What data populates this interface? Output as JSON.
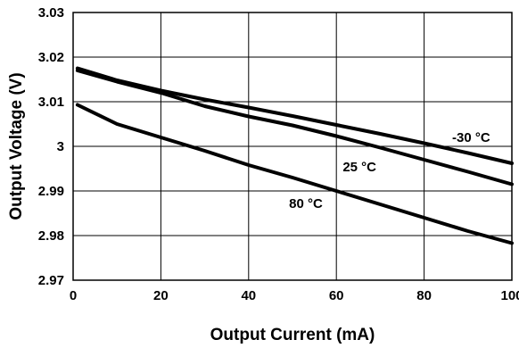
{
  "chart_data": {
    "type": "line",
    "title": "",
    "xlabel": "Output Current (mA)",
    "ylabel": "Output Voltage (V)",
    "xlim": [
      0,
      100
    ],
    "ylim": [
      2.97,
      3.03
    ],
    "x_ticks": [
      "0",
      "20",
      "40",
      "60",
      "80",
      "100"
    ],
    "y_ticks": [
      "3.03",
      "3.02",
      "3.01",
      "3",
      "2.99",
      "2.98",
      "2.97"
    ],
    "grid": true,
    "legend": "none",
    "series": [
      {
        "name": "-30 °C",
        "x": [
          1,
          10,
          20,
          30,
          40,
          50,
          60,
          70,
          80,
          90,
          100
        ],
        "values": [
          3.0175,
          3.0148,
          3.0125,
          3.0105,
          3.0087,
          3.0068,
          3.0048,
          3.0028,
          3.0007,
          2.9985,
          2.9962
        ]
      },
      {
        "name": "25 °C",
        "x": [
          1,
          10,
          20,
          30,
          40,
          50,
          60,
          70,
          80,
          90,
          100
        ],
        "values": [
          3.017,
          3.0145,
          3.012,
          3.009,
          3.0067,
          3.0047,
          3.0023,
          2.9997,
          2.997,
          2.9943,
          2.9915
        ]
      },
      {
        "name": "80 °C",
        "x": [
          1,
          10,
          20,
          30,
          40,
          50,
          60,
          70,
          80,
          90,
          100
        ],
        "values": [
          3.0093,
          3.005,
          3.002,
          2.999,
          2.9958,
          2.993,
          2.99,
          2.987,
          2.984,
          2.981,
          2.9783
        ]
      }
    ]
  }
}
